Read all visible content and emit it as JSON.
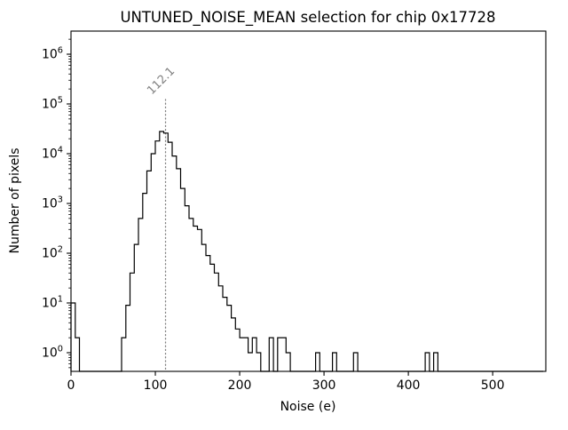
{
  "figure": {
    "title": "UNTUNED_NOISE_MEAN selection for chip 0x17728"
  },
  "chart_data": {
    "type": "bar",
    "subtype": "step-histogram",
    "title": "UNTUNED_NOISE_MEAN selection for chip 0x17728",
    "xlabel": "Noise (e)",
    "ylabel": "Number of pixels",
    "yscale": "log",
    "grid": false,
    "legend": null,
    "xlim": [
      0,
      563
    ],
    "ylim": [
      0.42,
      2900000
    ],
    "x_ticks": [
      0,
      100,
      200,
      300,
      400,
      500
    ],
    "y_tick_base": "10",
    "y_tick_exponents": [
      0,
      1,
      2,
      3,
      4,
      5,
      6
    ],
    "bin_width": 5,
    "bins": [
      [
        0,
        10
      ],
      [
        5,
        2
      ],
      [
        60,
        2
      ],
      [
        65,
        9
      ],
      [
        70,
        40
      ],
      [
        75,
        150
      ],
      [
        80,
        500
      ],
      [
        85,
        1600
      ],
      [
        90,
        4500
      ],
      [
        95,
        10000
      ],
      [
        100,
        18000
      ],
      [
        105,
        28000
      ],
      [
        110,
        26000
      ],
      [
        115,
        17000
      ],
      [
        120,
        9000
      ],
      [
        125,
        5000
      ],
      [
        130,
        2000
      ],
      [
        135,
        900
      ],
      [
        140,
        500
      ],
      [
        145,
        350
      ],
      [
        150,
        300
      ],
      [
        155,
        150
      ],
      [
        160,
        90
      ],
      [
        165,
        60
      ],
      [
        170,
        40
      ],
      [
        175,
        22
      ],
      [
        180,
        13
      ],
      [
        185,
        9
      ],
      [
        190,
        5
      ],
      [
        195,
        3
      ],
      [
        200,
        2
      ],
      [
        205,
        2
      ],
      [
        210,
        1
      ],
      [
        215,
        2
      ],
      [
        220,
        1
      ],
      [
        235,
        2
      ],
      [
        245,
        2
      ],
      [
        250,
        2
      ],
      [
        255,
        1
      ],
      [
        290,
        1
      ],
      [
        310,
        1
      ],
      [
        335,
        1
      ],
      [
        420,
        1
      ],
      [
        430,
        1
      ]
    ],
    "line_color": "#000000",
    "vline": {
      "x": 112.1,
      "label": "112.1",
      "color": "#808080",
      "style": "dotted"
    }
  }
}
